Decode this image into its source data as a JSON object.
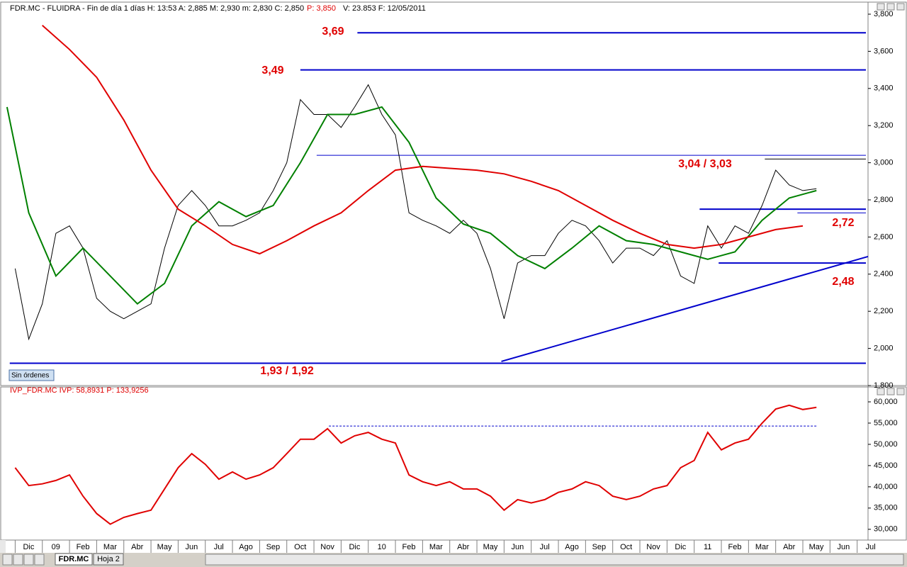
{
  "chart_data": [
    {
      "type": "line",
      "title": "FDR.MC - FLUIDRA - Fin de día 1 días  H: 13:53  A: 2,885  M: 2,930  m: 2,830  C: 2,850",
      "title_highlight": "P: 3,850",
      "title_tail": "V: 23.853  F: 12/05/2011",
      "status": "Sin órdenes",
      "xlim": [
        -0.35,
        31.4
      ],
      "ylim": [
        1.8,
        3.8
      ],
      "yticks": [
        {
          "value": 1.8,
          "label": "1,800"
        },
        {
          "value": 2.0,
          "label": "2,000"
        },
        {
          "value": 2.2,
          "label": "2,200"
        },
        {
          "value": 2.4,
          "label": "2,400"
        },
        {
          "value": 2.6,
          "label": "2,600"
        },
        {
          "value": 2.8,
          "label": "2,800"
        },
        {
          "value": 3.0,
          "label": "3,000"
        },
        {
          "value": 3.2,
          "label": "3,200"
        },
        {
          "value": 3.4,
          "label": "3,400"
        },
        {
          "value": 3.6,
          "label": "3,600"
        },
        {
          "value": 3.8,
          "label": "3,800"
        }
      ],
      "x": [
        0,
        0.5,
        1,
        1.5,
        2,
        2.5,
        3,
        3.5,
        4,
        4.5,
        5,
        5.5,
        6,
        6.5,
        7,
        7.5,
        8,
        8.5,
        9,
        9.5,
        10,
        10.5,
        11,
        11.5,
        12,
        12.5,
        13,
        13.5,
        14,
        14.5,
        15,
        15.5,
        16,
        16.5,
        17,
        17.5,
        18,
        18.5,
        19,
        19.5,
        20,
        20.5,
        21,
        21.5,
        22,
        22.5,
        23,
        23.5,
        24,
        24.5,
        25,
        25.5,
        26,
        26.5,
        27,
        27.5,
        28,
        28.5,
        29,
        29.5
      ],
      "series": [
        {
          "color": "#000000",
          "values": [
            2.43,
            2.05,
            2.24,
            2.62,
            2.66,
            2.54,
            2.27,
            2.2,
            2.16,
            2.2,
            2.24,
            2.54,
            2.77,
            2.85,
            2.77,
            2.66,
            2.66,
            2.69,
            2.73,
            2.85,
            3.0,
            3.34,
            3.26,
            3.26,
            3.19,
            3.3,
            3.42,
            3.26,
            3.15,
            2.73,
            2.69,
            2.66,
            2.62,
            2.69,
            2.62,
            2.43,
            2.16,
            2.46,
            2.5,
            2.5,
            2.62,
            2.69,
            2.66,
            2.58,
            2.46,
            2.54,
            2.54,
            2.5,
            2.58,
            2.39,
            2.35,
            2.66,
            2.54,
            2.66,
            2.62,
            2.77,
            2.96,
            2.88,
            2.85,
            2.86
          ]
        },
        {
          "color": "#008000",
          "x": [
            -0.3,
            0.5,
            1.5,
            2.5,
            3.5,
            4.5,
            5.5,
            6.5,
            7.5,
            8.5,
            9.5,
            10.5,
            11.5,
            12.5,
            13.5,
            14.5,
            15.5,
            16.5,
            17.5,
            18.5,
            19.5,
            20.5,
            21.5,
            22.5,
            23.5,
            24.5,
            25.5,
            26.5,
            27.5,
            28.5,
            29.5
          ],
          "values": [
            3.3,
            2.73,
            2.39,
            2.54,
            2.39,
            2.24,
            2.35,
            2.66,
            2.79,
            2.71,
            2.77,
            3.0,
            3.26,
            3.26,
            3.3,
            3.11,
            2.81,
            2.67,
            2.62,
            2.5,
            2.43,
            2.54,
            2.66,
            2.58,
            2.56,
            2.52,
            2.48,
            2.52,
            2.69,
            2.81,
            2.85
          ]
        },
        {
          "color": "#e00000",
          "x": [
            1,
            2,
            3,
            4,
            5,
            6,
            7,
            8,
            9,
            10,
            11,
            12,
            13,
            14,
            15,
            16,
            17,
            18,
            19,
            20,
            21,
            22,
            23,
            24,
            25,
            26,
            27,
            28,
            29
          ],
          "values": [
            3.74,
            3.61,
            3.46,
            3.23,
            2.96,
            2.75,
            2.66,
            2.56,
            2.51,
            2.58,
            2.66,
            2.73,
            2.85,
            2.96,
            2.98,
            2.97,
            2.96,
            2.94,
            2.9,
            2.85,
            2.77,
            2.69,
            2.62,
            2.56,
            2.54,
            2.56,
            2.6,
            2.64,
            2.66
          ]
        }
      ],
      "levels": [
        {
          "value": 3.7,
          "from": 12.6
        },
        {
          "value": 3.5,
          "from": 10.5
        },
        {
          "value": 3.04,
          "from": 11.1
        },
        {
          "value": 3.02,
          "from": 27.6,
          "color": "#000000"
        },
        {
          "value": 2.75,
          "from": 25.2
        },
        {
          "value": 2.73,
          "from": 28.8
        },
        {
          "value": 2.46,
          "from": 25.9
        },
        {
          "value": 1.92,
          "from": -0.2
        }
      ],
      "level_color": "#0000cc",
      "trend": {
        "x": [
          17.9,
          31.4
        ],
        "values": [
          1.93,
          2.495
        ],
        "color": "#0000cc"
      },
      "annotations": [
        "3,69",
        "3,49",
        "3,04 / 3,03",
        "2,72",
        "2,48",
        "1,93 / 1,92"
      ],
      "annotation_color": "#e00000"
    },
    {
      "type": "line",
      "title": "IVP_FDR.MC  IVP: 58,8931  P: 133,9256",
      "xlim": [
        -0.35,
        31.4
      ],
      "ylim": [
        27.8,
        61.5
      ],
      "yticks": [
        {
          "value": 30,
          "label": "30,000"
        },
        {
          "value": 35,
          "label": "35,000"
        },
        {
          "value": 40,
          "label": "40,000"
        },
        {
          "value": 45,
          "label": "45,000"
        },
        {
          "value": 50,
          "label": "50,000"
        },
        {
          "value": 55,
          "label": "55,000"
        },
        {
          "value": 60,
          "label": "60,000"
        }
      ],
      "xticks": [
        {
          "value": 0,
          "label": "Dic"
        },
        {
          "value": 1,
          "label": "09"
        },
        {
          "value": 2,
          "label": "Feb"
        },
        {
          "value": 3,
          "label": "Mar"
        },
        {
          "value": 4,
          "label": "Abr"
        },
        {
          "value": 5,
          "label": "May"
        },
        {
          "value": 6,
          "label": "Jun"
        },
        {
          "value": 7,
          "label": "Jul"
        },
        {
          "value": 8,
          "label": "Ago"
        },
        {
          "value": 9,
          "label": "Sep"
        },
        {
          "value": 10,
          "label": "Oct"
        },
        {
          "value": 11,
          "label": "Nov"
        },
        {
          "value": 12,
          "label": "Dic"
        },
        {
          "value": 13,
          "label": "10"
        },
        {
          "value": 14,
          "label": "Feb"
        },
        {
          "value": 15,
          "label": "Mar"
        },
        {
          "value": 16,
          "label": "Abr"
        },
        {
          "value": 17,
          "label": "May"
        },
        {
          "value": 18,
          "label": "Jun"
        },
        {
          "value": 19,
          "label": "Jul"
        },
        {
          "value": 20,
          "label": "Ago"
        },
        {
          "value": 21,
          "label": "Sep"
        },
        {
          "value": 22,
          "label": "Oct"
        },
        {
          "value": 23,
          "label": "Nov"
        },
        {
          "value": 24,
          "label": "Dic"
        },
        {
          "value": 25,
          "label": "11"
        },
        {
          "value": 26,
          "label": "Feb"
        },
        {
          "value": 27,
          "label": "Mar"
        },
        {
          "value": 28,
          "label": "Abr"
        },
        {
          "value": 29,
          "label": "May"
        },
        {
          "value": 30,
          "label": "Jun"
        },
        {
          "value": 31,
          "label": "Jul"
        }
      ],
      "x": [
        0,
        0.5,
        1,
        1.5,
        2,
        2.5,
        3,
        3.5,
        4,
        4.5,
        5,
        5.5,
        6,
        6.5,
        7,
        7.5,
        8,
        8.5,
        9,
        9.5,
        10,
        10.5,
        11,
        11.5,
        12,
        12.5,
        13,
        13.5,
        14,
        14.5,
        15,
        15.5,
        16,
        16.5,
        17,
        17.5,
        18,
        18.5,
        19,
        19.5,
        20,
        20.5,
        21,
        21.5,
        22,
        22.5,
        23,
        23.5,
        24,
        24.5,
        25,
        25.5,
        26,
        26.5,
        27,
        27.5,
        28,
        28.5,
        29,
        29.5
      ],
      "series": [
        {
          "color": "#e00000",
          "values": [
            44.5,
            40.3,
            40.7,
            41.5,
            42.8,
            37.8,
            33.7,
            31.2,
            32.8,
            33.7,
            34.5,
            39.5,
            44.5,
            47.8,
            45.3,
            41.8,
            43.5,
            41.8,
            42.8,
            44.5,
            47.8,
            51.2,
            51.2,
            53.7,
            50.3,
            52,
            52.8,
            51.2,
            50.3,
            42.8,
            41.2,
            40.3,
            41.2,
            39.5,
            39.5,
            37.8,
            34.5,
            37,
            36.2,
            37,
            38.7,
            39.5,
            41.2,
            40.3,
            37.8,
            37,
            37.8,
            39.5,
            40.3,
            44.5,
            46.2,
            52.8,
            48.7,
            50.3,
            51.2,
            55,
            58.3,
            59.2,
            58.2,
            58.7
          ]
        }
      ],
      "dashed_level": {
        "value": 54.3,
        "x": [
          11.55,
          29.5
        ],
        "color": "#0000cc"
      },
      "tabs": [
        "FDR.MC",
        "Hoja 2"
      ]
    }
  ]
}
